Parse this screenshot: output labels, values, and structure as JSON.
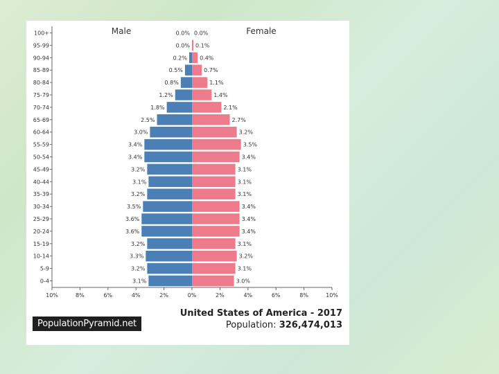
{
  "colors": {
    "male": "#4a80b5",
    "female": "#ee7b8c",
    "background": "#d6ebd2"
  },
  "footer": {
    "brand": "PopulationPyramid.net",
    "country": "United States of America",
    "year_sep": " - ",
    "year": "2017",
    "population_label": "Population: ",
    "population_value": "326,474,013"
  },
  "chart_data": {
    "type": "bar",
    "title": "United States of America - 2017",
    "series_labels": {
      "left": "Male",
      "right": "Female"
    },
    "xlim": [
      -10,
      10
    ],
    "x_ticks": [
      {
        "v": -10,
        "label": "10%"
      },
      {
        "v": -8,
        "label": "8%"
      },
      {
        "v": -6,
        "label": "6%"
      },
      {
        "v": -4,
        "label": "4%"
      },
      {
        "v": -2,
        "label": "2%"
      },
      {
        "v": 0,
        "label": "0%"
      },
      {
        "v": 2,
        "label": "2%"
      },
      {
        "v": 4,
        "label": "4%"
      },
      {
        "v": 6,
        "label": "6%"
      },
      {
        "v": 8,
        "label": "8%"
      },
      {
        "v": 10,
        "label": "10%"
      }
    ],
    "categories": [
      "100+",
      "95-99",
      "90-94",
      "85-89",
      "80-84",
      "75-79",
      "70-74",
      "65-69",
      "60-64",
      "55-59",
      "50-54",
      "45-49",
      "40-44",
      "35-39",
      "30-34",
      "25-29",
      "20-24",
      "15-19",
      "10-14",
      "5-9",
      "0-4"
    ],
    "series": [
      {
        "name": "Male",
        "values": [
          0.0,
          0.0,
          0.2,
          0.5,
          0.8,
          1.2,
          1.8,
          2.5,
          3.0,
          3.4,
          3.4,
          3.2,
          3.1,
          3.2,
          3.5,
          3.6,
          3.6,
          3.2,
          3.3,
          3.2,
          3.1
        ],
        "labels": [
          "0.0%",
          "0.0%",
          "0.2%",
          "0.5%",
          "0.8%",
          "1.2%",
          "1.8%",
          "2.5%",
          "3.0%",
          "3.4%",
          "3.4%",
          "3.2%",
          "3.1%",
          "3.2%",
          "3.5%",
          "3.6%",
          "3.6%",
          "3.2%",
          "3.3%",
          "3.2%",
          "3.1%"
        ]
      },
      {
        "name": "Female",
        "values": [
          0.0,
          0.1,
          0.4,
          0.7,
          1.1,
          1.4,
          2.1,
          2.7,
          3.2,
          3.5,
          3.4,
          3.1,
          3.1,
          3.1,
          3.4,
          3.4,
          3.4,
          3.1,
          3.2,
          3.1,
          3.0
        ],
        "labels": [
          "0.0%",
          "0.1%",
          "0.4%",
          "0.7%",
          "1.1%",
          "1.4%",
          "2.1%",
          "2.7%",
          "3.2%",
          "3.5%",
          "3.4%",
          "3.1%",
          "3.1%",
          "3.1%",
          "3.4%",
          "3.4%",
          "3.4%",
          "3.1%",
          "3.2%",
          "3.1%",
          "3.0%"
        ]
      }
    ]
  }
}
